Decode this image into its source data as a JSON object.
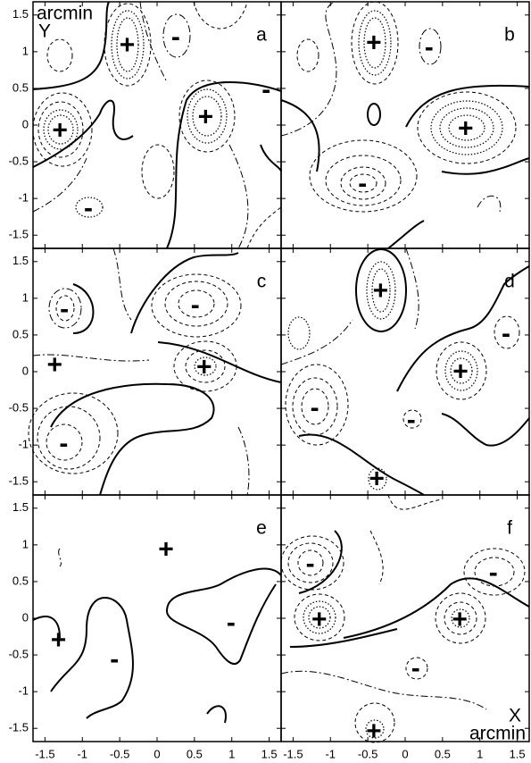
{
  "chart_data": [
    {
      "type": "contour",
      "label": "a",
      "xlim": [
        -1.66,
        1.66
      ],
      "ylim": [
        -1.68,
        1.68
      ],
      "xticks": [
        -1.5,
        -1,
        -0.5,
        0,
        0.5,
        1,
        1.5
      ],
      "yticks": [
        -1.5,
        -1,
        -0.5,
        0,
        0.5,
        1,
        1.5
      ],
      "annotations": [
        "arcmin",
        "Y"
      ],
      "markers": [
        {
          "text": "+",
          "x": -0.4,
          "y": 1.09
        },
        {
          "text": "-",
          "x": 0.25,
          "y": 1.2
        },
        {
          "text": "+",
          "x": -1.3,
          "y": -0.07
        },
        {
          "text": "+",
          "x": 0.65,
          "y": 0.11
        },
        {
          "text": "-",
          "x": 1.46,
          "y": 0.48
        },
        {
          "text": "-",
          "x": -0.92,
          "y": -1.13
        }
      ]
    },
    {
      "type": "contour",
      "label": "b",
      "xlim": [
        -1.66,
        1.66
      ],
      "ylim": [
        -1.68,
        1.68
      ],
      "xticks": [
        -1.5,
        -1,
        -0.5,
        0,
        0.5,
        1,
        1.5
      ],
      "yticks": [
        -1.5,
        -1,
        -0.5,
        0,
        0.5,
        1,
        1.5
      ],
      "markers": [
        {
          "text": "+",
          "x": -0.42,
          "y": 1.12
        },
        {
          "text": "-",
          "x": 0.32,
          "y": 1.06
        },
        {
          "text": "+",
          "x": 0.81,
          "y": -0.05
        },
        {
          "text": "-",
          "x": -0.57,
          "y": -0.8
        }
      ]
    },
    {
      "type": "contour",
      "label": "c",
      "xlim": [
        -1.66,
        1.66
      ],
      "ylim": [
        -1.68,
        1.68
      ],
      "xticks": [
        -1.5,
        -1,
        -0.5,
        0,
        0.5,
        1,
        1.5
      ],
      "yticks": [
        -1.5,
        -1,
        -0.5,
        0,
        0.5,
        1,
        1.5
      ],
      "markers": [
        {
          "text": "-",
          "x": -1.24,
          "y": 0.85
        },
        {
          "text": "+",
          "x": -1.37,
          "y": 0.09
        },
        {
          "text": "-",
          "x": 0.51,
          "y": 0.91
        },
        {
          "text": "+",
          "x": 0.63,
          "y": 0.06
        },
        {
          "text": "-",
          "x": -1.25,
          "y": -0.98
        }
      ]
    },
    {
      "type": "contour",
      "label": "d",
      "xlim": [
        -1.66,
        1.66
      ],
      "ylim": [
        -1.68,
        1.68
      ],
      "xticks": [
        -1.5,
        -1,
        -0.5,
        0,
        0.5,
        1,
        1.5
      ],
      "yticks": [
        -1.5,
        -1,
        -0.5,
        0,
        0.5,
        1,
        1.5
      ],
      "markers": [
        {
          "text": "+",
          "x": -0.33,
          "y": 1.1
        },
        {
          "text": "-",
          "x": 1.35,
          "y": 0.52
        },
        {
          "text": "+",
          "x": 0.74,
          "y": 0
        },
        {
          "text": "-",
          "x": -1.21,
          "y": -0.49
        },
        {
          "text": "-",
          "x": 0.08,
          "y": -0.66
        },
        {
          "text": "+",
          "x": -0.38,
          "y": -1.46
        }
      ]
    },
    {
      "type": "contour",
      "label": "e",
      "xlim": [
        -1.66,
        1.66
      ],
      "ylim": [
        -1.68,
        1.68
      ],
      "xticks": [
        -1.5,
        -1,
        -0.5,
        0,
        0.5,
        1,
        1.5
      ],
      "yticks": [
        -1.5,
        -1,
        -0.5,
        0,
        0.5,
        1,
        1.5
      ],
      "markers": [
        {
          "text": "+",
          "x": 0.12,
          "y": 0.94
        },
        {
          "text": "-",
          "x": 0.99,
          "y": -0.06
        },
        {
          "text": "+",
          "x": -1.32,
          "y": -0.3
        },
        {
          "text": "-",
          "x": -0.57,
          "y": -0.56
        }
      ]
    },
    {
      "type": "contour",
      "label": "f",
      "xlim": [
        -1.66,
        1.66
      ],
      "ylim": [
        -1.68,
        1.68
      ],
      "xticks": [
        -1.5,
        -1,
        -0.5,
        0,
        0.5,
        1,
        1.5
      ],
      "yticks": [
        -1.5,
        -1,
        -0.5,
        0,
        0.5,
        1,
        1.5
      ],
      "annotations": [
        "X",
        "arcmin"
      ],
      "markers": [
        {
          "text": "-",
          "x": -1.27,
          "y": 0.74
        },
        {
          "text": "-",
          "x": 1.18,
          "y": 0.62
        },
        {
          "text": "+",
          "x": -1.15,
          "y": -0.02
        },
        {
          "text": "+",
          "x": 0.73,
          "y": -0.02
        },
        {
          "text": "-",
          "x": 0.14,
          "y": -0.68
        },
        {
          "text": "+",
          "x": -0.42,
          "y": -1.54
        }
      ]
    }
  ]
}
